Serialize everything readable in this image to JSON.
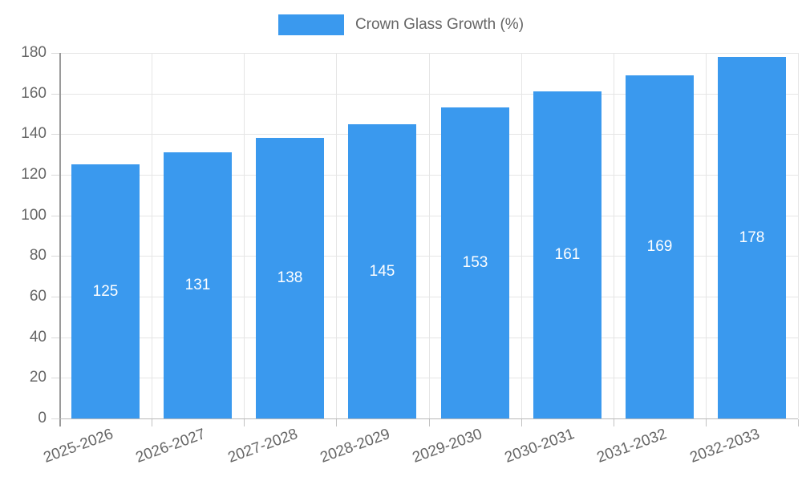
{
  "chart_data": {
    "type": "bar",
    "title": "",
    "legend": {
      "label": "Crown Glass Growth (%)",
      "position": "top"
    },
    "categories": [
      "2025-2026",
      "2026-2027",
      "2027-2028",
      "2028-2029",
      "2029-2030",
      "2030-2031",
      "2031-2032",
      "2032-2033"
    ],
    "series": [
      {
        "name": "Crown Glass Growth (%)",
        "values": [
          125,
          131,
          138,
          145,
          153,
          161,
          169,
          178
        ]
      }
    ],
    "value_labels": [
      "125",
      "131",
      "138",
      "145",
      "153",
      "161",
      "169",
      "178"
    ],
    "xlabel": "",
    "ylabel": "",
    "ylim": [
      0,
      180
    ],
    "ytick_step": 20,
    "yticks": [
      "0",
      "20",
      "40",
      "60",
      "80",
      "100",
      "120",
      "140",
      "160",
      "180"
    ],
    "grid": true,
    "legend_position": "top",
    "x_label_rotation_deg": -20,
    "colors": {
      "bar": "#3a99ee",
      "grid": "#e5e5e5",
      "axis_left": "#9a9a9a",
      "axis_bottom": "#b9b9b9",
      "tick": "#c2c2c2",
      "text": "#666666",
      "value_text": "#ffffff",
      "background": "#ffffff"
    }
  }
}
